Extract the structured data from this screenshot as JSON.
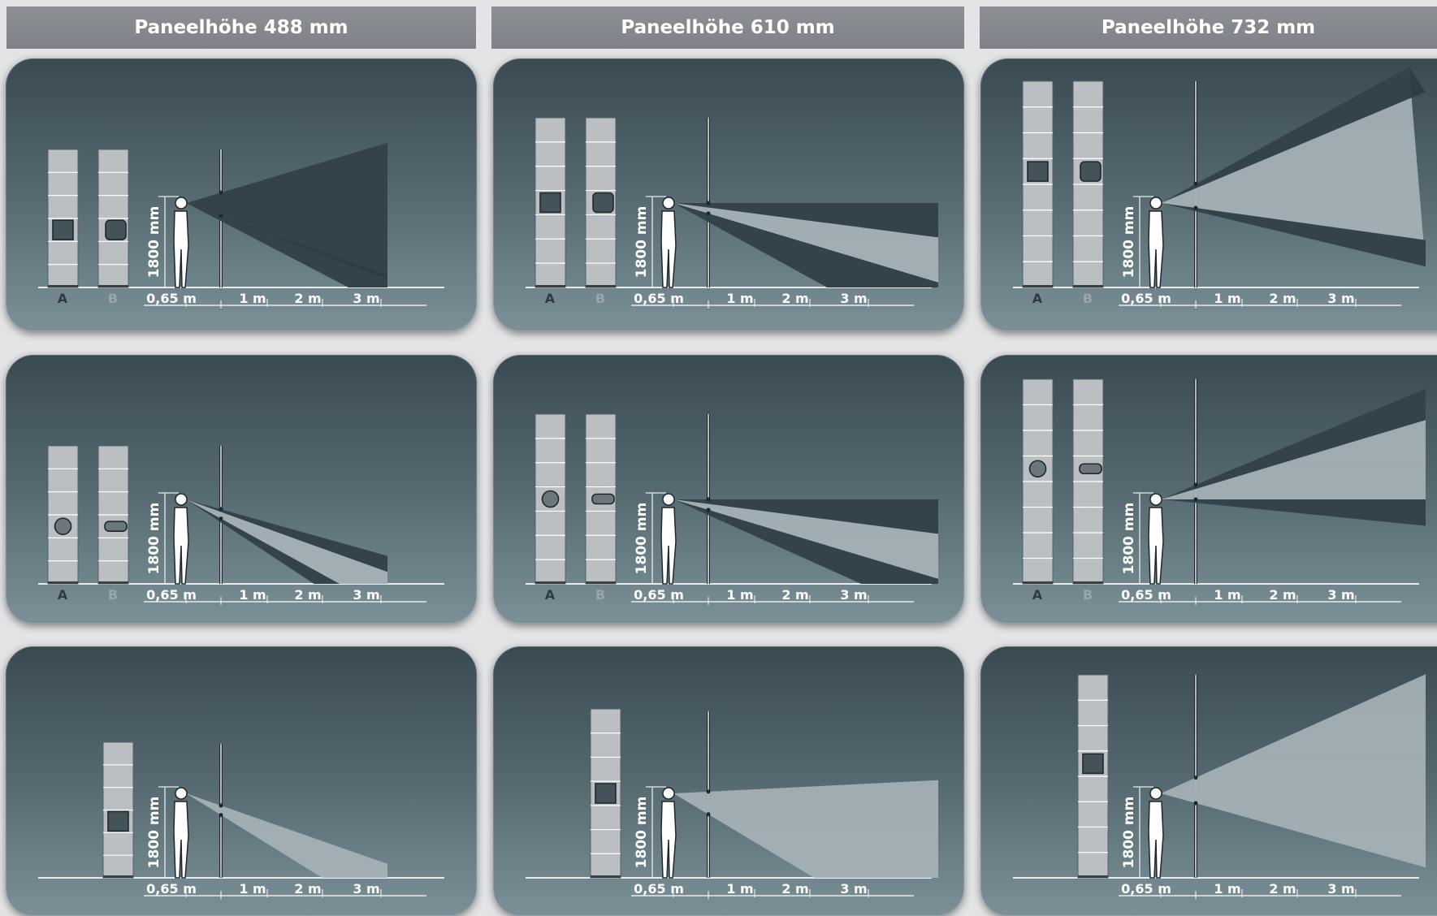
{
  "headers": [
    "Paneelhöhe 488 mm",
    "Paneelhöhe 610 mm",
    "Paneelhöhe 732 mm"
  ],
  "labels": {
    "module_a": "A",
    "module_b": "B",
    "height": "1800 mm",
    "distances": [
      "0,65 m",
      "1 m",
      "2 m",
      "3 m"
    ]
  },
  "colors": {
    "panel_top": "#3a4a52",
    "panel_bottom": "#7b9097",
    "header": "#85888e",
    "cone_light": "#a7b4b9",
    "cone_dark": "#2e3d44"
  }
}
